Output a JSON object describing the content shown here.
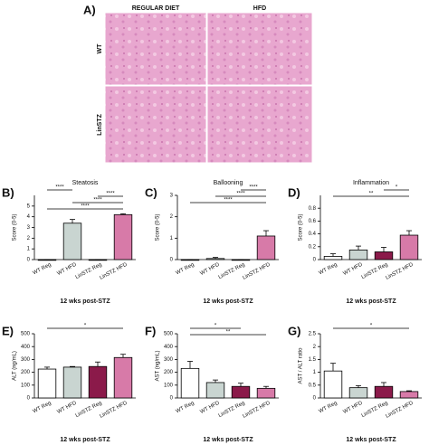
{
  "panel_a": {
    "label": "A)",
    "columns": [
      "REGULAR DIET",
      "HFD"
    ],
    "rows": [
      "WT",
      "LinSTZ"
    ]
  },
  "chart_data": [
    {
      "type": "bar",
      "panel": "B)",
      "title": "Steatosis",
      "ylabel": "Score (0-5)",
      "xlabel": "12 wks post-STZ",
      "categories": [
        "WT Reg",
        "WT HFD",
        "LinSTZ Reg",
        "LinSTZ HFD"
      ],
      "values": [
        0,
        3.4,
        0,
        4.2
      ],
      "errors": [
        0,
        0.35,
        0,
        0.08
      ],
      "colors": [
        "#ffffff",
        "#c9d5d1",
        "#8b1a4a",
        "#d77aa8"
      ],
      "ylim": [
        0,
        6
      ],
      "yticks": [
        0,
        1,
        2,
        3,
        4,
        5
      ],
      "annotations": [
        {
          "label": "****",
          "between": [
            "WT Reg",
            "WT HFD"
          ]
        },
        {
          "label": "****",
          "between": [
            "LinSTZ Reg",
            "LinSTZ HFD"
          ]
        },
        {
          "label": "****",
          "between": [
            "WT HFD",
            "LinSTZ HFD"
          ]
        },
        {
          "label": "****",
          "between": [
            "WT Reg",
            "LinSTZ HFD"
          ]
        }
      ]
    },
    {
      "type": "bar",
      "panel": "C)",
      "title": "Ballooning",
      "ylabel": "Score (0-5)",
      "xlabel": "12 wks post-STZ",
      "categories": [
        "WT Reg",
        "WT HFD",
        "LinSTZ Reg",
        "LinSTZ HFD"
      ],
      "values": [
        0,
        0.05,
        0,
        1.1
      ],
      "errors": [
        0,
        0.05,
        0,
        0.25
      ],
      "colors": [
        "#ffffff",
        "#c9d5d1",
        "#8b1a4a",
        "#d77aa8"
      ],
      "ylim": [
        0,
        3
      ],
      "yticks": [
        0,
        1,
        2,
        3
      ],
      "annotations": [
        {
          "label": "****",
          "between": [
            "LinSTZ Reg",
            "LinSTZ HFD"
          ]
        },
        {
          "label": "****",
          "between": [
            "WT HFD",
            "LinSTZ HFD"
          ]
        },
        {
          "label": "****",
          "between": [
            "WT Reg",
            "LinSTZ HFD"
          ]
        }
      ]
    },
    {
      "type": "bar",
      "panel": "D)",
      "title": "Inflammation",
      "ylabel": "Score (0-5)",
      "xlabel": "12 wks post-STZ",
      "categories": [
        "WT Reg",
        "WT HFD",
        "LinSTZ Reg",
        "LinSTZ HFD"
      ],
      "values": [
        0.05,
        0.15,
        0.12,
        0.38
      ],
      "errors": [
        0.04,
        0.06,
        0.07,
        0.07
      ],
      "colors": [
        "#ffffff",
        "#c9d5d1",
        "#8b1a4a",
        "#d77aa8"
      ],
      "ylim": [
        0,
        1
      ],
      "yticks": [
        0,
        0.2,
        0.4,
        0.6,
        0.8
      ],
      "annotations": [
        {
          "label": "*",
          "between": [
            "LinSTZ Reg",
            "LinSTZ HFD"
          ]
        },
        {
          "label": "**",
          "between": [
            "WT Reg",
            "LinSTZ HFD"
          ]
        }
      ]
    },
    {
      "type": "bar",
      "panel": "E)",
      "title": "",
      "ylabel": "ALT (ng/mL)",
      "xlabel": "12 wks post-STZ",
      "categories": [
        "WT Reg",
        "WT HFD",
        "LinSTZ Reg",
        "LinSTZ HFD"
      ],
      "values": [
        225,
        240,
        245,
        315
      ],
      "errors": [
        15,
        5,
        35,
        25
      ],
      "colors": [
        "#ffffff",
        "#c9d5d1",
        "#8b1a4a",
        "#d77aa8"
      ],
      "ylim": [
        0,
        500
      ],
      "yticks": [
        0,
        100,
        200,
        300,
        400,
        500
      ],
      "annotations": [
        {
          "label": "*",
          "between": [
            "WT Reg",
            "LinSTZ HFD"
          ]
        }
      ]
    },
    {
      "type": "bar",
      "panel": "F)",
      "title": "",
      "ylabel": "AST (ng/mL)",
      "xlabel": "12 wks post-STZ",
      "categories": [
        "WT Reg",
        "WT HFD",
        "LinSTZ Reg",
        "LinSTZ HFD"
      ],
      "values": [
        230,
        120,
        90,
        75
      ],
      "errors": [
        55,
        20,
        25,
        15
      ],
      "colors": [
        "#ffffff",
        "#c9d5d1",
        "#8b1a4a",
        "#d77aa8"
      ],
      "ylim": [
        0,
        500
      ],
      "yticks": [
        0,
        100,
        200,
        300,
        400,
        500
      ],
      "annotations": [
        {
          "label": "*",
          "between": [
            "WT Reg",
            "LinSTZ Reg"
          ]
        },
        {
          "label": "**",
          "between": [
            "WT Reg",
            "LinSTZ HFD"
          ]
        }
      ]
    },
    {
      "type": "bar",
      "panel": "G)",
      "title": "",
      "ylabel": "AST / ALT ratio",
      "xlabel": "12 wks post-STZ",
      "categories": [
        "WT Reg",
        "WT HFD",
        "LinSTZ Reg",
        "LinSTZ HFD"
      ],
      "values": [
        1.05,
        0.4,
        0.45,
        0.25
      ],
      "errors": [
        0.3,
        0.08,
        0.15,
        0.03
      ],
      "colors": [
        "#ffffff",
        "#c9d5d1",
        "#8b1a4a",
        "#d77aa8"
      ],
      "ylim": [
        0,
        2.5
      ],
      "yticks": [
        0,
        0.5,
        1,
        1.5,
        2,
        2.5
      ],
      "annotations": [
        {
          "label": "*",
          "between": [
            "WT Reg",
            "LinSTZ HFD"
          ]
        }
      ]
    }
  ]
}
